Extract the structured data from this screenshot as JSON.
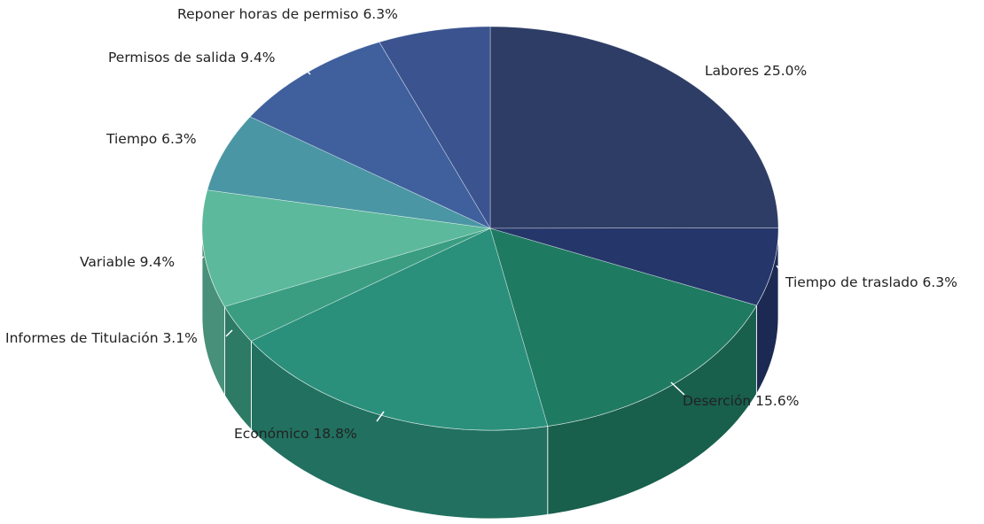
{
  "chart_data": {
    "type": "pie",
    "title": "",
    "slices": [
      {
        "label": "Labores",
        "value": 25.0,
        "display": "25.0%",
        "color": "#2e3d66"
      },
      {
        "label": "Tiempo de traslado",
        "value": 6.3,
        "display": "6.3%",
        "color": "#24366a"
      },
      {
        "label": "Deserción",
        "value": 15.6,
        "display": "15.6%",
        "color": "#1f7a62"
      },
      {
        "label": "Económico",
        "value": 18.8,
        "display": "18.8%",
        "color": "#2a907b"
      },
      {
        "label": "Informes de Titulación",
        "value": 3.1,
        "display": "3.1%",
        "color": "#3a9d82"
      },
      {
        "label": "Variable",
        "value": 9.4,
        "display": "9.4%",
        "color": "#5cb99b"
      },
      {
        "label": "Tiempo",
        "value": 6.3,
        "display": "6.3%",
        "color": "#4a96a4"
      },
      {
        "label": "Permisos de salida",
        "value": 9.4,
        "display": "9.4%",
        "color": "#3f609d"
      },
      {
        "label": "Reponer horas de permiso",
        "value": 6.3,
        "display": "6.3%",
        "color": "#3b5490"
      }
    ],
    "legend": "none",
    "style": "3d-pie"
  }
}
